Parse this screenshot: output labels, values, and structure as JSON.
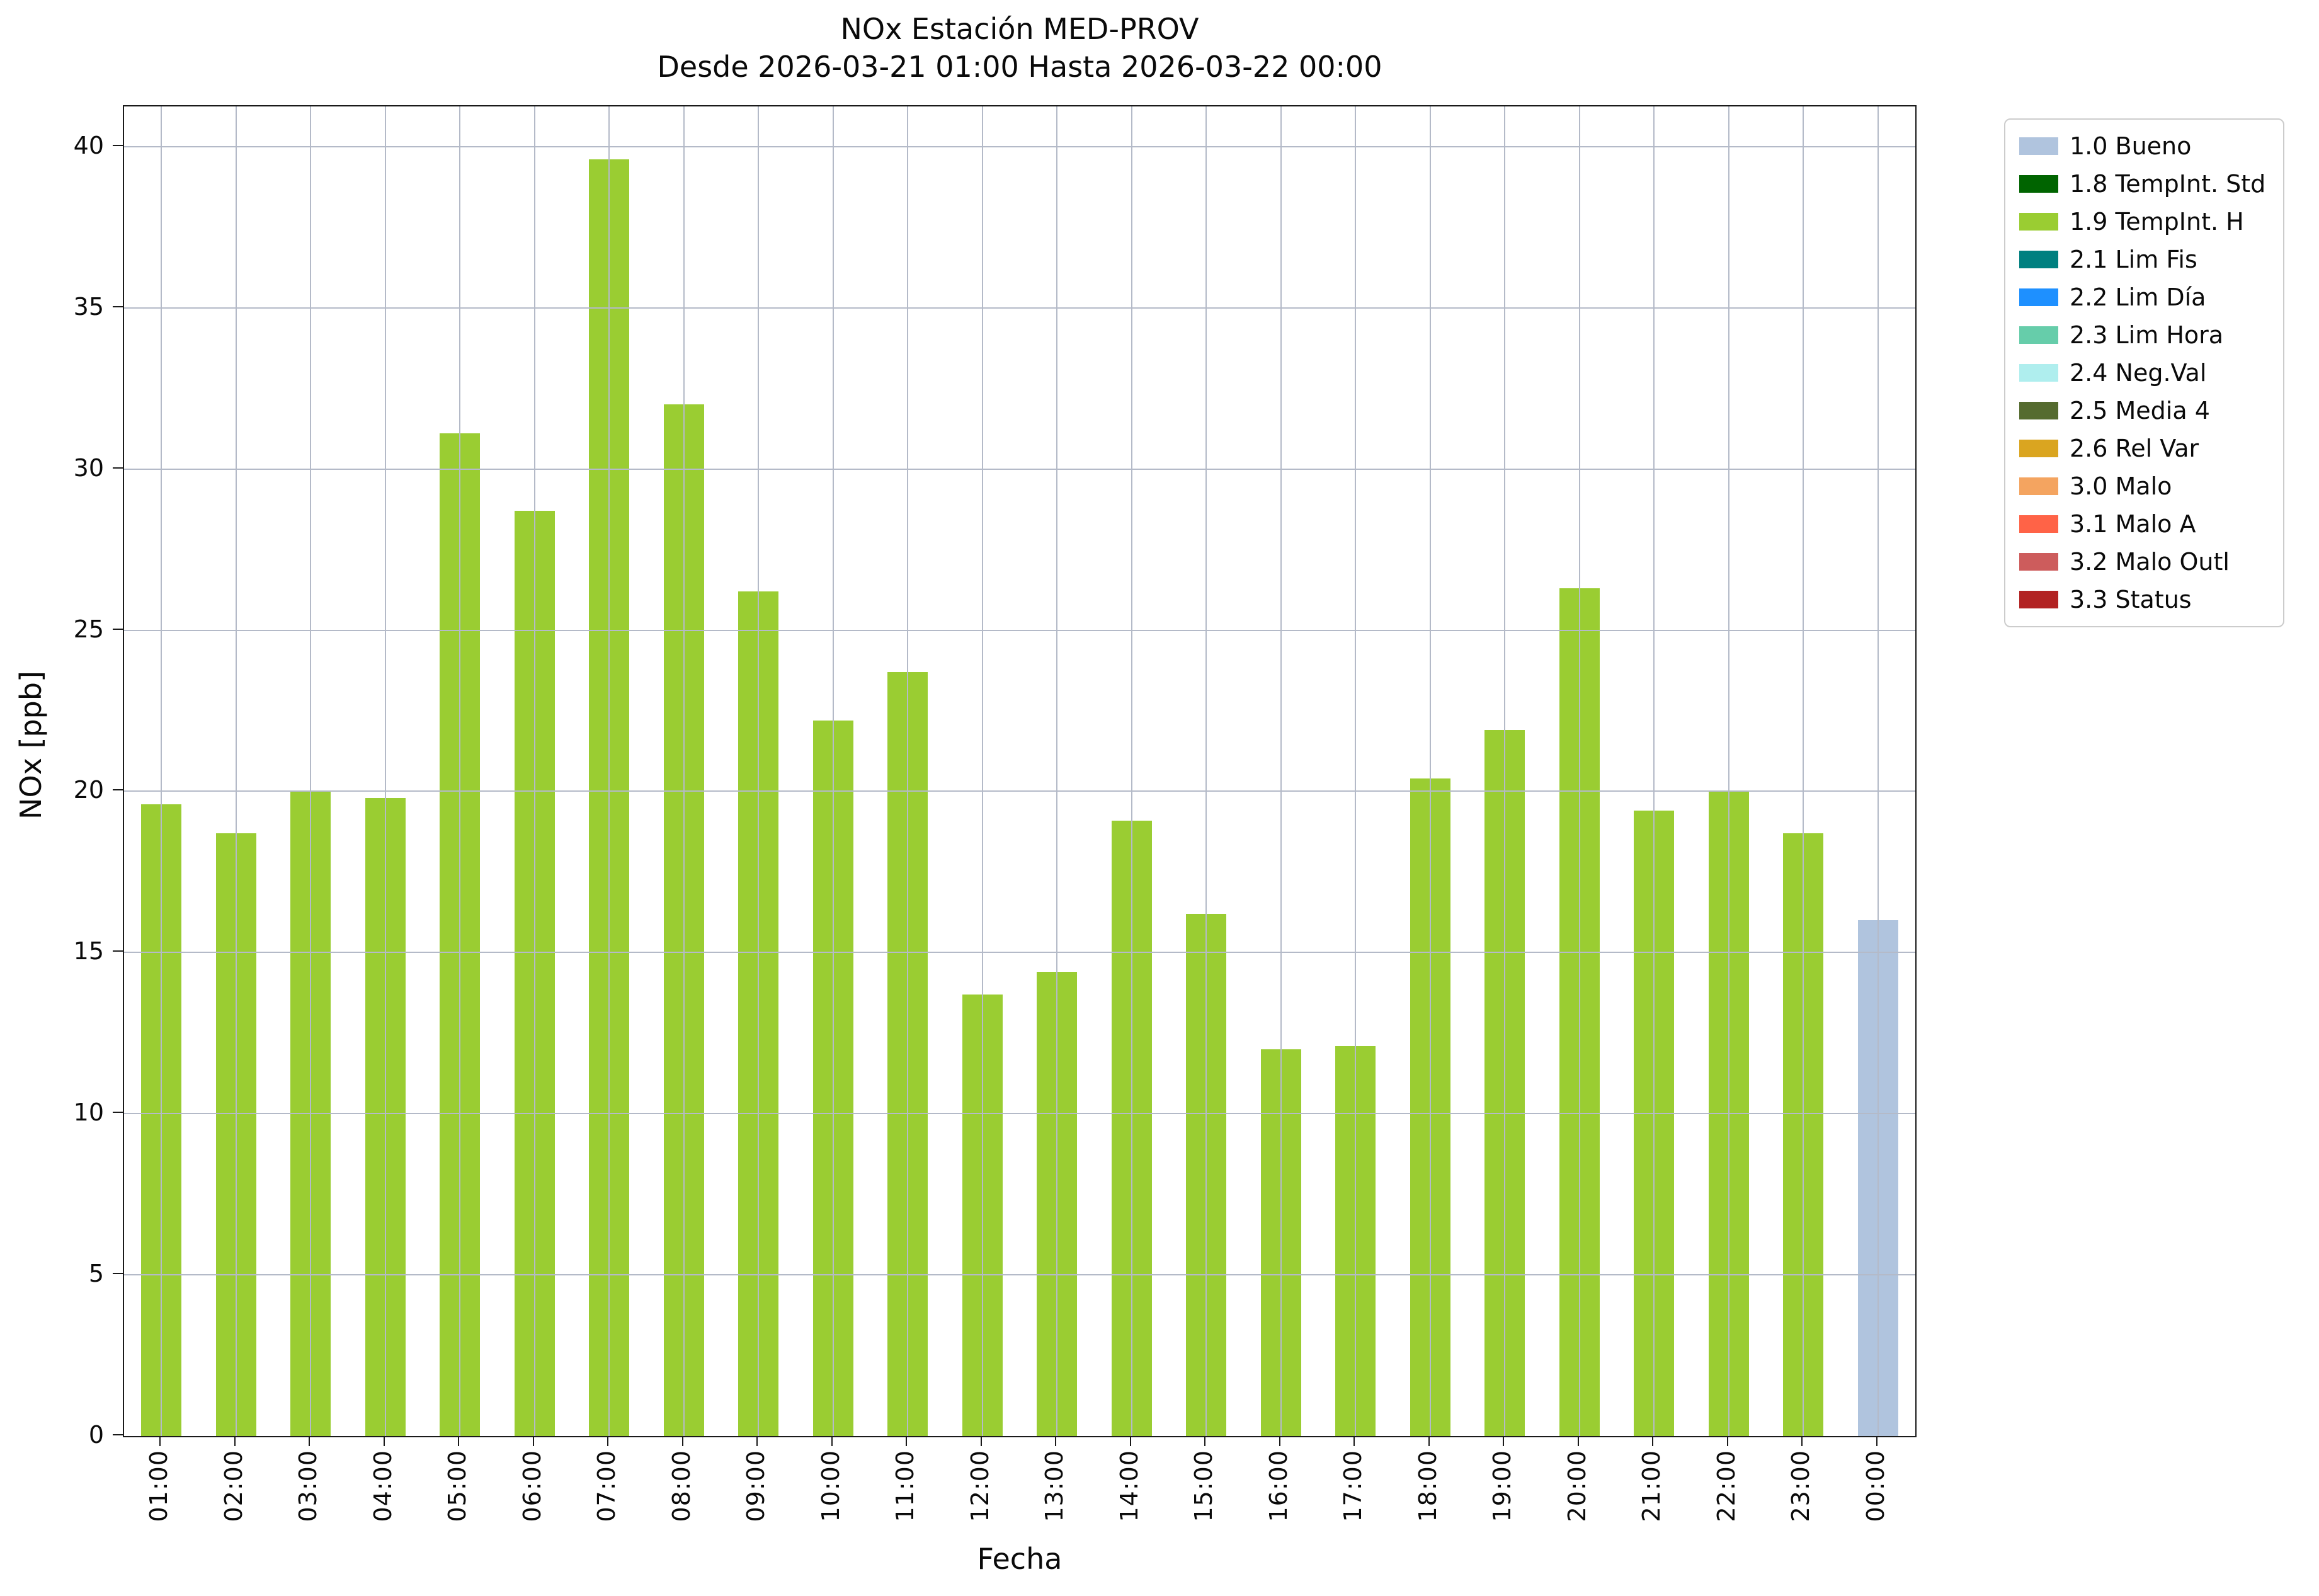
{
  "chart_data": {
    "type": "bar",
    "title": "NOx Estación MED-PROV",
    "subtitle": "Desde 2026-03-21 01:00 Hasta 2026-03-22 00:00",
    "xlabel": "Fecha",
    "ylabel": "NOx [ppb]",
    "ylim": [
      0,
      41.25
    ],
    "yticks": [
      0,
      5,
      10,
      15,
      20,
      25,
      30,
      35,
      40
    ],
    "grid": true,
    "categories": [
      "01:00",
      "02:00",
      "03:00",
      "04:00",
      "05:00",
      "06:00",
      "07:00",
      "08:00",
      "09:00",
      "10:00",
      "11:00",
      "12:00",
      "13:00",
      "14:00",
      "15:00",
      "16:00",
      "17:00",
      "18:00",
      "19:00",
      "20:00",
      "21:00",
      "22:00",
      "23:00",
      "00:00"
    ],
    "values": [
      19.6,
      18.7,
      20.0,
      19.8,
      31.1,
      28.7,
      39.6,
      32.0,
      26.2,
      22.2,
      23.7,
      13.7,
      14.4,
      19.1,
      16.2,
      12.0,
      12.1,
      20.4,
      21.9,
      26.3,
      19.4,
      20.0,
      18.7,
      16.0
    ],
    "bar_status": [
      "1.9",
      "1.9",
      "1.9",
      "1.9",
      "1.9",
      "1.9",
      "1.9",
      "1.9",
      "1.9",
      "1.9",
      "1.9",
      "1.9",
      "1.9",
      "1.9",
      "1.9",
      "1.9",
      "1.9",
      "1.9",
      "1.9",
      "1.9",
      "1.9",
      "1.9",
      "1.9",
      "1.0"
    ],
    "status_colors": {
      "1.0": "#B0C4DE",
      "1.9": "#9ACD32"
    },
    "legend": {
      "position": "upper right outside",
      "entries": [
        {
          "label": "1.0 Bueno",
          "color": "#B0C4DE"
        },
        {
          "label": "1.8 TempInt. Std",
          "color": "#006400"
        },
        {
          "label": "1.9 TempInt. H",
          "color": "#9ACD32"
        },
        {
          "label": "2.1 Lim Fis",
          "color": "#008080"
        },
        {
          "label": "2.2 Lim Día",
          "color": "#1E90FF"
        },
        {
          "label": "2.3 Lim Hora",
          "color": "#66CDAA"
        },
        {
          "label": "2.4 Neg.Val",
          "color": "#AFEEEE"
        },
        {
          "label": "2.5 Media 4",
          "color": "#556B2F"
        },
        {
          "label": "2.6 Rel Var",
          "color": "#DAA520"
        },
        {
          "label": "3.0 Malo",
          "color": "#F4A460"
        },
        {
          "label": "3.1 Malo A",
          "color": "#FF6347"
        },
        {
          "label": "3.2 Malo Outl",
          "color": "#CD5C5C"
        },
        {
          "label": "3.3 Status",
          "color": "#B22222"
        }
      ]
    }
  }
}
